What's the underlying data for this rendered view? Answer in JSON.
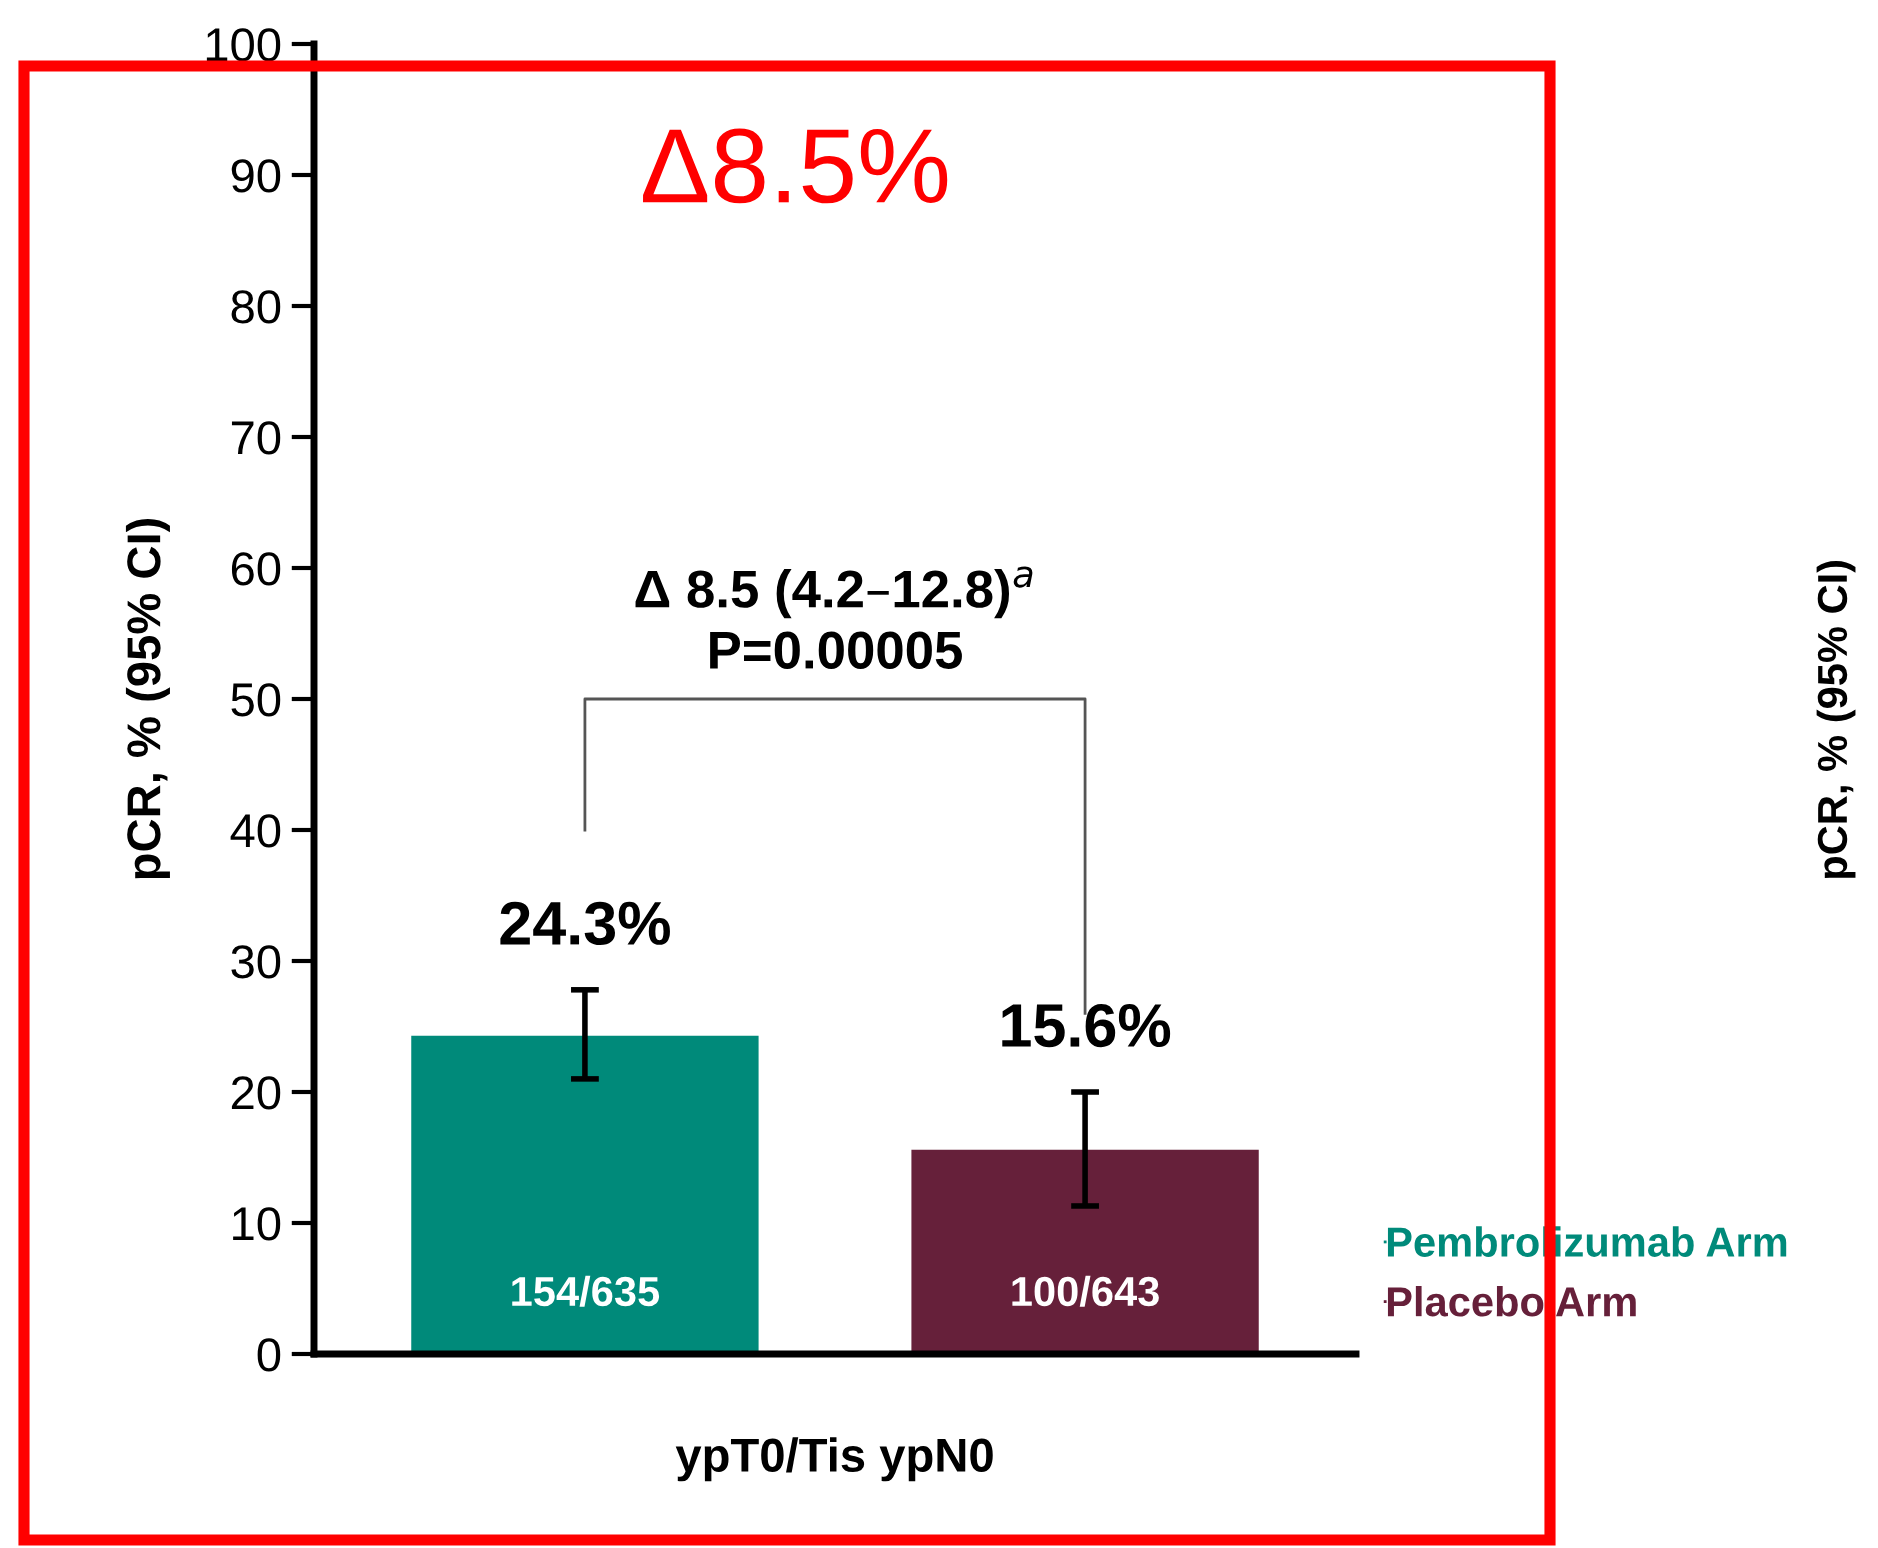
{
  "chart_data": {
    "type": "bar",
    "ylabel": "pCR, % (95% CI)",
    "categories": [
      "ypT0/Tis ypN0"
    ],
    "series": [
      {
        "name": "Pembrolizumab Arm",
        "color": "#008a7a",
        "values": [
          24.3
        ],
        "errors": [
          [
            21.0,
            27.8
          ]
        ],
        "value_labels": [
          "24.3%"
        ]
      },
      {
        "name": "Placebo Arm",
        "color": "#66203a",
        "values": [
          15.6
        ],
        "errors": [
          [
            11.3,
            20.0
          ]
        ],
        "value_labels": [
          "15.6%"
        ]
      }
    ],
    "ylim": [
      0,
      100
    ],
    "yticks": [
      0,
      10,
      20,
      30,
      40,
      50,
      60,
      70,
      80,
      90,
      100
    ],
    "grid": false,
    "legend": "right",
    "annotations": [
      "154/635",
      "100/643",
      "Δ 8.5 (4.2–12.8)$^{a}$\nP=0.00005",
      "Δ8.5%",
      "pCR, % (95% CI)"
    ]
  }
}
